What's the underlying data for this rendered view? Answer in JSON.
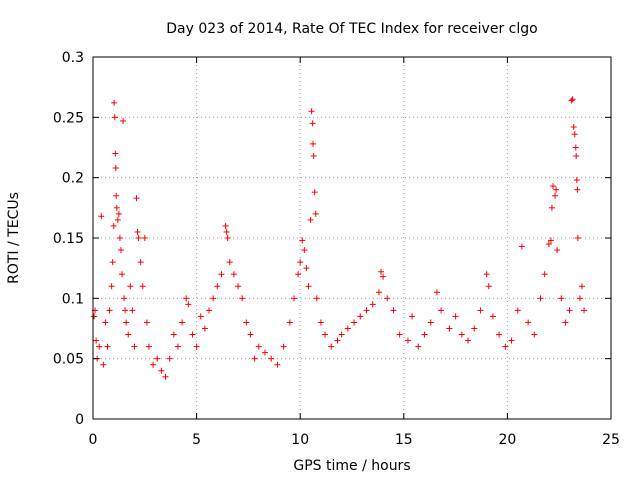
{
  "chart_data": {
    "type": "scatter",
    "title": "Day 023 of 2014, Rate Of TEC Index for receiver clgo",
    "xlabel": "GPS time / hours",
    "ylabel": "ROTI / TECUs",
    "xlim": [
      0,
      25
    ],
    "ylim": [
      0,
      0.3
    ],
    "grid": true,
    "marker": "+",
    "color": "#ff0000",
    "xticks": [
      0,
      5,
      10,
      15,
      20,
      25
    ],
    "xtick_labels": [
      "0",
      "5",
      "10",
      "15",
      "20",
      "25"
    ],
    "yticks": [
      0,
      0.05,
      0.1,
      0.15,
      0.2,
      0.25,
      0.3
    ],
    "ytick_labels": [
      "0",
      "0.05",
      "0.1",
      "0.15",
      "0.2",
      "0.25",
      "0.3"
    ],
    "series": [
      {
        "name": "ROTI",
        "points": [
          [
            0.05,
            0.085
          ],
          [
            0.1,
            0.09
          ],
          [
            0.15,
            0.065
          ],
          [
            0.2,
            0.05
          ],
          [
            0.3,
            0.06
          ],
          [
            0.4,
            0.168
          ],
          [
            0.5,
            0.045
          ],
          [
            0.6,
            0.08
          ],
          [
            0.7,
            0.06
          ],
          [
            0.8,
            0.09
          ],
          [
            0.9,
            0.11
          ],
          [
            0.95,
            0.13
          ],
          [
            1.0,
            0.16
          ],
          [
            1.02,
            0.262
          ],
          [
            1.05,
            0.25
          ],
          [
            1.08,
            0.22
          ],
          [
            1.1,
            0.208
          ],
          [
            1.12,
            0.185
          ],
          [
            1.15,
            0.175
          ],
          [
            1.2,
            0.165
          ],
          [
            1.25,
            0.17
          ],
          [
            1.3,
            0.15
          ],
          [
            1.35,
            0.14
          ],
          [
            1.4,
            0.12
          ],
          [
            1.45,
            0.247
          ],
          [
            1.5,
            0.1
          ],
          [
            1.55,
            0.09
          ],
          [
            1.6,
            0.08
          ],
          [
            1.7,
            0.07
          ],
          [
            1.8,
            0.11
          ],
          [
            1.9,
            0.09
          ],
          [
            2.0,
            0.06
          ],
          [
            2.1,
            0.183
          ],
          [
            2.15,
            0.155
          ],
          [
            2.2,
            0.15
          ],
          [
            2.3,
            0.13
          ],
          [
            2.4,
            0.11
          ],
          [
            2.5,
            0.15
          ],
          [
            2.6,
            0.08
          ],
          [
            2.7,
            0.06
          ],
          [
            2.9,
            0.045
          ],
          [
            3.1,
            0.05
          ],
          [
            3.3,
            0.04
          ],
          [
            3.5,
            0.035
          ],
          [
            3.7,
            0.05
          ],
          [
            3.9,
            0.07
          ],
          [
            4.1,
            0.06
          ],
          [
            4.3,
            0.08
          ],
          [
            4.5,
            0.1
          ],
          [
            4.6,
            0.095
          ],
          [
            4.8,
            0.07
          ],
          [
            5.0,
            0.06
          ],
          [
            5.2,
            0.085
          ],
          [
            5.4,
            0.075
          ],
          [
            5.6,
            0.09
          ],
          [
            5.8,
            0.1
          ],
          [
            6.0,
            0.11
          ],
          [
            6.2,
            0.12
          ],
          [
            6.4,
            0.16
          ],
          [
            6.45,
            0.155
          ],
          [
            6.5,
            0.15
          ],
          [
            6.6,
            0.13
          ],
          [
            6.8,
            0.12
          ],
          [
            7.0,
            0.11
          ],
          [
            7.2,
            0.1
          ],
          [
            7.4,
            0.08
          ],
          [
            7.6,
            0.07
          ],
          [
            7.8,
            0.05
          ],
          [
            8.0,
            0.06
          ],
          [
            8.3,
            0.055
          ],
          [
            8.6,
            0.05
          ],
          [
            8.9,
            0.045
          ],
          [
            9.2,
            0.06
          ],
          [
            9.5,
            0.08
          ],
          [
            9.7,
            0.1
          ],
          [
            9.9,
            0.12
          ],
          [
            10.0,
            0.13
          ],
          [
            10.1,
            0.148
          ],
          [
            10.2,
            0.14
          ],
          [
            10.3,
            0.125
          ],
          [
            10.4,
            0.11
          ],
          [
            10.5,
            0.165
          ],
          [
            10.55,
            0.255
          ],
          [
            10.6,
            0.245
          ],
          [
            10.62,
            0.228
          ],
          [
            10.65,
            0.218
          ],
          [
            10.7,
            0.188
          ],
          [
            10.75,
            0.17
          ],
          [
            10.8,
            0.1
          ],
          [
            11.0,
            0.08
          ],
          [
            11.2,
            0.07
          ],
          [
            11.5,
            0.06
          ],
          [
            11.8,
            0.065
          ],
          [
            12.0,
            0.07
          ],
          [
            12.3,
            0.075
          ],
          [
            12.6,
            0.08
          ],
          [
            12.9,
            0.085
          ],
          [
            13.2,
            0.09
          ],
          [
            13.5,
            0.095
          ],
          [
            13.8,
            0.105
          ],
          [
            13.9,
            0.122
          ],
          [
            14.0,
            0.118
          ],
          [
            14.2,
            0.1
          ],
          [
            14.5,
            0.09
          ],
          [
            14.8,
            0.07
          ],
          [
            15.2,
            0.065
          ],
          [
            15.4,
            0.085
          ],
          [
            15.7,
            0.06
          ],
          [
            16.0,
            0.07
          ],
          [
            16.3,
            0.08
          ],
          [
            16.6,
            0.105
          ],
          [
            16.8,
            0.09
          ],
          [
            17.2,
            0.075
          ],
          [
            17.5,
            0.085
          ],
          [
            17.8,
            0.07
          ],
          [
            18.1,
            0.065
          ],
          [
            18.4,
            0.075
          ],
          [
            18.7,
            0.09
          ],
          [
            19.0,
            0.12
          ],
          [
            19.1,
            0.11
          ],
          [
            19.3,
            0.085
          ],
          [
            19.6,
            0.07
          ],
          [
            19.9,
            0.06
          ],
          [
            20.2,
            0.065
          ],
          [
            20.5,
            0.09
          ],
          [
            20.7,
            0.143
          ],
          [
            21.0,
            0.08
          ],
          [
            21.3,
            0.07
          ],
          [
            21.6,
            0.1
          ],
          [
            21.8,
            0.12
          ],
          [
            22.0,
            0.145
          ],
          [
            22.1,
            0.148
          ],
          [
            22.15,
            0.175
          ],
          [
            22.2,
            0.193
          ],
          [
            22.3,
            0.185
          ],
          [
            22.35,
            0.19
          ],
          [
            22.4,
            0.14
          ],
          [
            22.6,
            0.1
          ],
          [
            22.8,
            0.08
          ],
          [
            23.0,
            0.09
          ],
          [
            23.1,
            0.264
          ],
          [
            23.15,
            0.265
          ],
          [
            23.2,
            0.242
          ],
          [
            23.25,
            0.236
          ],
          [
            23.3,
            0.225
          ],
          [
            23.32,
            0.218
          ],
          [
            23.35,
            0.198
          ],
          [
            23.38,
            0.19
          ],
          [
            23.4,
            0.15
          ],
          [
            23.5,
            0.1
          ],
          [
            23.6,
            0.11
          ],
          [
            23.7,
            0.09
          ]
        ]
      }
    ]
  }
}
